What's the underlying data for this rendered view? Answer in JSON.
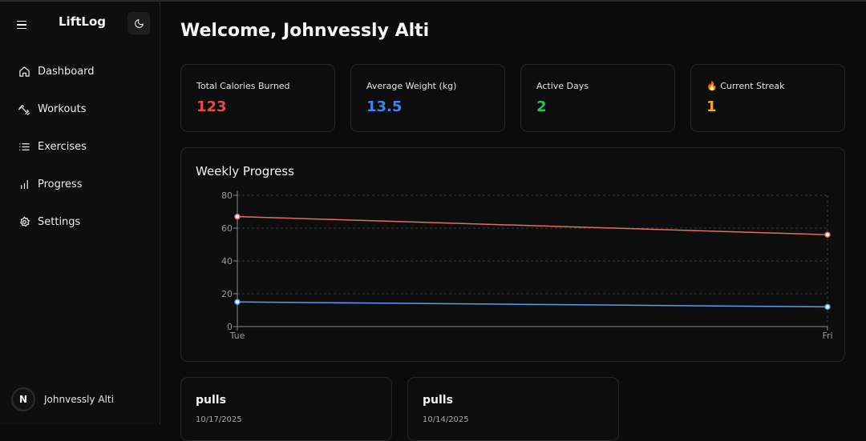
{
  "app": {
    "brand": "LiftLog"
  },
  "sidebar": {
    "items": [
      {
        "label": "Dashboard",
        "icon": "home-icon"
      },
      {
        "label": "Workouts",
        "icon": "dumbbell-icon"
      },
      {
        "label": "Exercises",
        "icon": "list-icon"
      },
      {
        "label": "Progress",
        "icon": "bar-chart-icon"
      },
      {
        "label": "Settings",
        "icon": "gear-icon"
      }
    ],
    "user": {
      "initial": "N",
      "name": "Johnvessly Alti"
    }
  },
  "main": {
    "welcome": "Welcome, Johnvessly Alti",
    "stats": [
      {
        "label": "Total Calories Burned",
        "value": "123",
        "color": "#e5484d"
      },
      {
        "label": "Average Weight (kg)",
        "value": "13.5",
        "color": "#3b82f6"
      },
      {
        "label": "Active Days",
        "value": "2",
        "color": "#22c55e"
      },
      {
        "label": "🔥 Current Streak",
        "value": "1",
        "color": "#f5a524"
      }
    ],
    "chart_title": "Weekly Progress",
    "workouts": [
      {
        "name": "pulls",
        "date": "10/17/2025"
      },
      {
        "name": "pulls",
        "date": "10/14/2025"
      }
    ]
  },
  "chart_data": {
    "type": "line",
    "title": "Weekly Progress",
    "categories": [
      "Tue",
      "Fri"
    ],
    "ylim": [
      0,
      80
    ],
    "yticks": [
      0,
      20,
      40,
      60,
      80
    ],
    "grid": true,
    "series": [
      {
        "values": [
          67,
          56
        ],
        "color": "#e06c6c"
      },
      {
        "values": [
          15,
          12
        ],
        "color": "#5b9bf0"
      }
    ]
  }
}
